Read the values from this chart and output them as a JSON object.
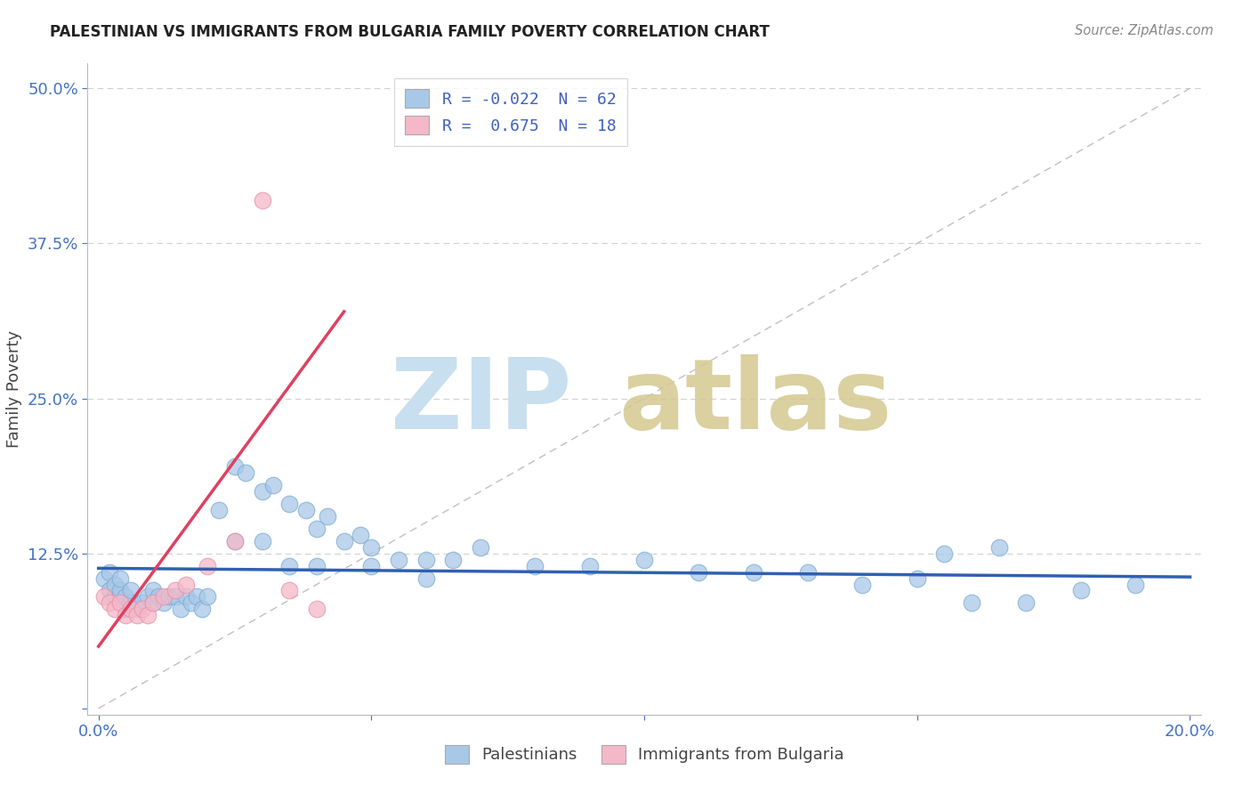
{
  "title": "PALESTINIAN VS IMMIGRANTS FROM BULGARIA FAMILY POVERTY CORRELATION CHART",
  "source": "Source: ZipAtlas.com",
  "ylabel": "Family Poverty",
  "xlim": [
    0.0,
    0.2
  ],
  "ylim": [
    0.0,
    0.5
  ],
  "xtick_vals": [
    0.0,
    0.05,
    0.1,
    0.15,
    0.2
  ],
  "xticklabels": [
    "0.0%",
    "",
    "",
    "",
    "20.0%"
  ],
  "ytick_vals": [
    0.0,
    0.125,
    0.25,
    0.375,
    0.5
  ],
  "yticklabels": [
    "",
    "12.5%",
    "25.0%",
    "37.5%",
    "50.0%"
  ],
  "blue_color": "#a8c8e8",
  "pink_color": "#f4b8c8",
  "blue_edge": "#7aaad0",
  "pink_edge": "#e890a8",
  "blue_line_color": "#3060b0",
  "pink_line_color": "#e04060",
  "diag_color": "#c0c0c0",
  "grid_color": "#d0d0d0",
  "blue_r": "-0.022",
  "blue_n": "62",
  "pink_r": "0.675",
  "pink_n": "18",
  "legend_color": "#4060c0",
  "tick_color": "#4472c4",
  "blue_scatter_x": [
    0.001,
    0.002,
    0.002,
    0.003,
    0.003,
    0.004,
    0.004,
    0.005,
    0.005,
    0.006,
    0.006,
    0.007,
    0.008,
    0.009,
    0.01,
    0.01,
    0.011,
    0.012,
    0.013,
    0.014,
    0.015,
    0.016,
    0.017,
    0.018,
    0.019,
    0.02,
    0.022,
    0.025,
    0.027,
    0.03,
    0.032,
    0.035,
    0.038,
    0.04,
    0.042,
    0.045,
    0.048,
    0.05,
    0.055,
    0.06,
    0.065,
    0.07,
    0.08,
    0.09,
    0.1,
    0.11,
    0.12,
    0.13,
    0.14,
    0.15,
    0.16,
    0.17,
    0.155,
    0.165,
    0.18,
    0.19,
    0.025,
    0.03,
    0.035,
    0.04,
    0.05,
    0.06
  ],
  "blue_scatter_y": [
    0.105,
    0.095,
    0.11,
    0.09,
    0.1,
    0.095,
    0.105,
    0.08,
    0.09,
    0.085,
    0.095,
    0.08,
    0.085,
    0.09,
    0.085,
    0.095,
    0.09,
    0.085,
    0.09,
    0.09,
    0.08,
    0.09,
    0.085,
    0.09,
    0.08,
    0.09,
    0.16,
    0.195,
    0.19,
    0.175,
    0.18,
    0.165,
    0.16,
    0.145,
    0.155,
    0.135,
    0.14,
    0.13,
    0.12,
    0.12,
    0.12,
    0.13,
    0.115,
    0.115,
    0.12,
    0.11,
    0.11,
    0.11,
    0.1,
    0.105,
    0.085,
    0.085,
    0.125,
    0.13,
    0.095,
    0.1,
    0.135,
    0.135,
    0.115,
    0.115,
    0.115,
    0.105
  ],
  "pink_scatter_x": [
    0.001,
    0.002,
    0.003,
    0.004,
    0.005,
    0.006,
    0.007,
    0.008,
    0.009,
    0.01,
    0.012,
    0.014,
    0.016,
    0.02,
    0.025,
    0.03,
    0.035,
    0.04
  ],
  "pink_scatter_y": [
    0.09,
    0.085,
    0.08,
    0.085,
    0.075,
    0.08,
    0.075,
    0.08,
    0.075,
    0.085,
    0.09,
    0.095,
    0.1,
    0.115,
    0.135,
    0.41,
    0.095,
    0.08
  ],
  "blue_trend_x": [
    0.0,
    0.2
  ],
  "blue_trend_y": [
    0.113,
    0.106
  ],
  "pink_trend_x": [
    0.0,
    0.045
  ],
  "pink_trend_y": [
    0.05,
    0.32
  ]
}
